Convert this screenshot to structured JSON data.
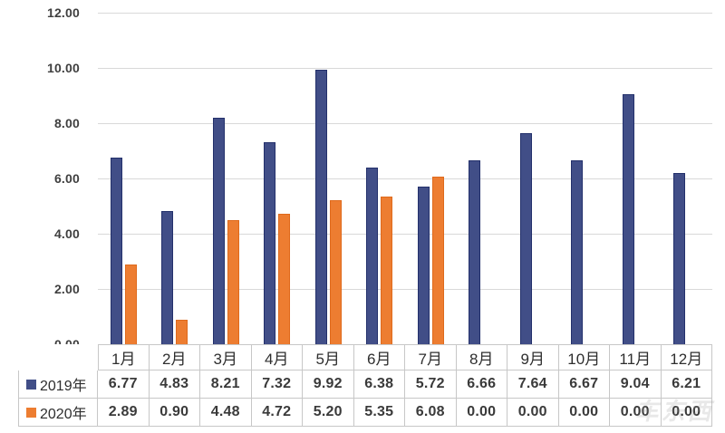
{
  "chart_data": {
    "type": "bar",
    "title": "",
    "xlabel": "",
    "ylabel": "",
    "categories": [
      "1月",
      "2月",
      "3月",
      "4月",
      "5月",
      "6月",
      "7月",
      "8月",
      "9月",
      "10月",
      "11月",
      "12月"
    ],
    "series": [
      {
        "name": "2019年",
        "color": "#414e87",
        "border_color": "#23306b",
        "values": [
          6.77,
          4.83,
          8.21,
          7.32,
          9.92,
          6.38,
          5.72,
          6.66,
          7.64,
          6.67,
          9.04,
          6.21
        ]
      },
      {
        "name": "2020年",
        "color": "#ed7d31",
        "border_color": "#df6a1c",
        "values": [
          2.89,
          0.9,
          4.48,
          4.72,
          5.2,
          5.35,
          6.08,
          0.0,
          0.0,
          0.0,
          0.0,
          0.0
        ]
      }
    ],
    "ylim": [
      0,
      12
    ],
    "ytick_step": 2,
    "ytick_labels": [
      "12.00",
      "10.00",
      "8.00",
      "6.00",
      "4.00",
      "2.00",
      "0.00"
    ],
    "value_decimals": 2,
    "grid": true,
    "gridline_color": "#d9d9d9",
    "legend_position": "table-left-column"
  },
  "watermark": {
    "text": "车东西"
  }
}
